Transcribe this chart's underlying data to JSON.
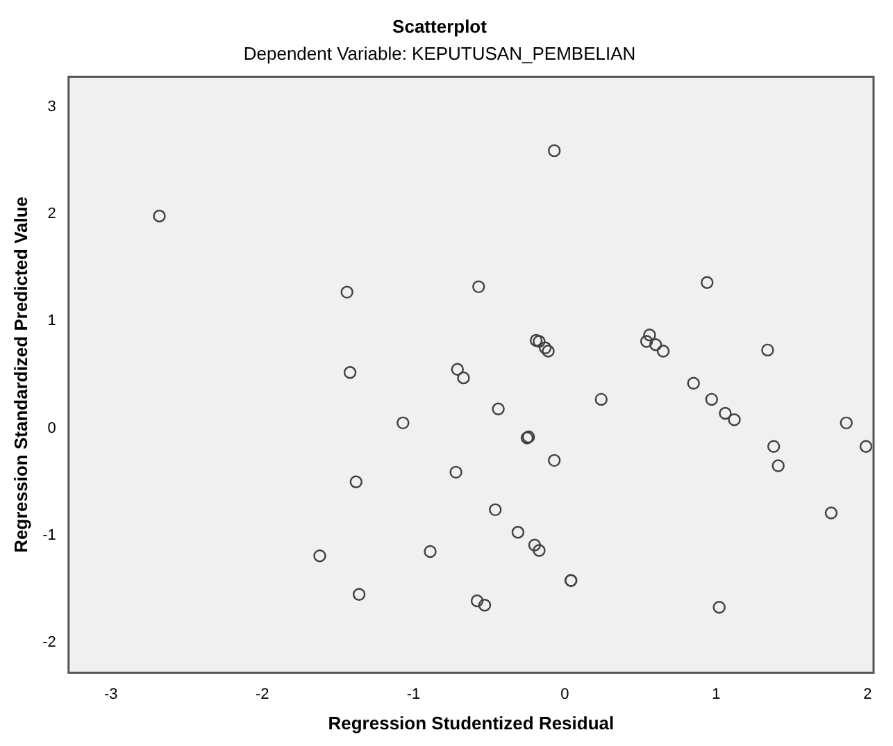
{
  "chart_data": {
    "type": "scatter",
    "title": "Scatterplot",
    "subtitle": "Dependent Variable: KEPUTUSAN_PEMBELIAN",
    "xlabel": "Regression Studentized Residual",
    "ylabel": "Regression Standardized Predicted Value",
    "x": [
      -2.68,
      -1.44,
      -1.42,
      -1.07,
      -0.71,
      -0.67,
      -1.38,
      -0.72,
      -1.62,
      -0.89,
      -1.36,
      -0.07,
      -0.57,
      -0.19,
      -0.17,
      -0.13,
      -0.11,
      -0.44,
      -0.25,
      -0.24,
      -0.07,
      0.24,
      0.56,
      0.54,
      0.6,
      0.65,
      0.94,
      0.85,
      0.97,
      1.06,
      1.12,
      1.34,
      1.86,
      1.99,
      1.38,
      1.41,
      1.76,
      -0.46,
      -0.31,
      -0.2,
      -0.17,
      0.04,
      0.04,
      -0.58,
      -0.53,
      1.02
    ],
    "values": [
      1.98,
      1.27,
      0.52,
      0.05,
      0.55,
      0.47,
      -0.5,
      -0.41,
      -1.19,
      -1.15,
      -1.55,
      2.59,
      1.32,
      0.82,
      0.81,
      0.75,
      0.72,
      0.18,
      -0.09,
      -0.08,
      -0.3,
      0.27,
      0.87,
      0.81,
      0.78,
      0.72,
      1.36,
      0.42,
      0.27,
      0.14,
      0.08,
      0.73,
      0.05,
      -0.17,
      -0.17,
      -0.35,
      -0.79,
      -0.76,
      -0.97,
      -1.09,
      -1.14,
      -1.42,
      -1.42,
      -1.61,
      -1.65,
      -1.67
    ],
    "color": "#404040",
    "marker": "circle",
    "xlim": [
      -3.28,
      2.04
    ],
    "xticks": [
      -3,
      -2,
      -1,
      0,
      1,
      2
    ],
    "ylim": [
      -2.28,
      3.28
    ],
    "yticks": [
      -2,
      -1,
      0,
      1,
      2,
      3
    ],
    "grid": false,
    "legend": false
  }
}
